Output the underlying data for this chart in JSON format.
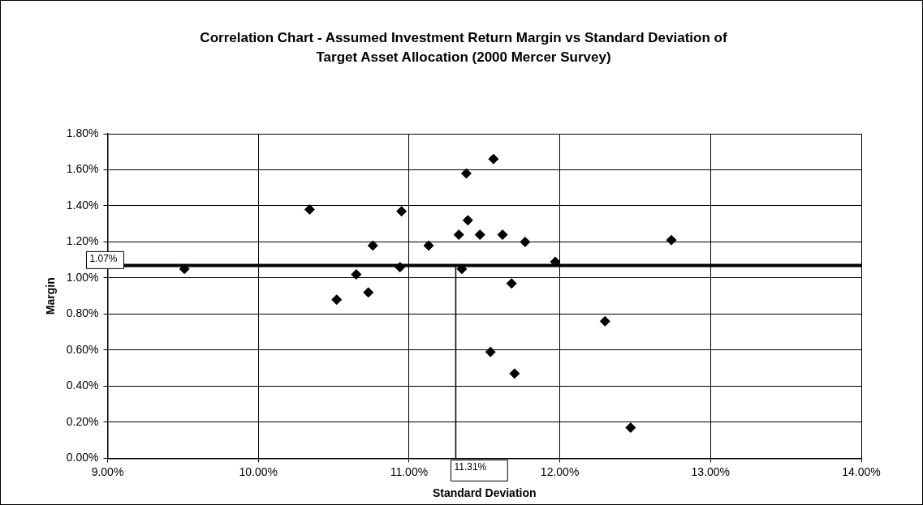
{
  "chart_data": {
    "type": "scatter",
    "title": "Correlation Chart - Assumed Investment Return Margin vs Standard Deviation of Target Asset Allocation (2000 Mercer Survey)",
    "xlabel": "Standard Deviation",
    "ylabel": "Margin",
    "x": [
      9.51,
      10.34,
      10.52,
      10.65,
      10.73,
      10.76,
      10.94,
      10.95,
      11.13,
      11.33,
      11.35,
      11.39,
      11.38,
      11.47,
      11.56,
      11.62,
      11.54,
      11.68,
      11.7,
      11.77,
      11.97,
      12.3,
      12.47,
      12.74
    ],
    "series": [
      {
        "color": "#000000",
        "values": [
          1.05,
          1.38,
          0.88,
          1.02,
          0.92,
          1.18,
          1.06,
          1.37,
          1.18,
          1.24,
          1.05,
          1.32,
          1.58,
          1.24,
          1.66,
          1.24,
          0.59,
          0.97,
          0.47,
          1.2,
          1.09,
          0.76,
          0.17,
          1.21
        ]
      }
    ],
    "xlim": [
      9,
      14
    ],
    "ylim": [
      0,
      1.8
    ],
    "xticks": [
      {
        "value": 9,
        "label": "9.00%"
      },
      {
        "value": 10,
        "label": "10.00%"
      },
      {
        "value": 11,
        "label": "11.00%"
      },
      {
        "value": 12,
        "label": "12.00%"
      },
      {
        "value": 13,
        "label": "13.00%"
      },
      {
        "value": 14,
        "label": "14.00%"
      }
    ],
    "yticks": [
      {
        "value": 0,
        "label": "0.00%"
      },
      {
        "value": 0.2,
        "label": "0.20%"
      },
      {
        "value": 0.4,
        "label": "0.40%"
      },
      {
        "value": 0.6,
        "label": "0.60%"
      },
      {
        "value": 0.8,
        "label": "0.80%"
      },
      {
        "value": 1.0,
        "label": "1.00%"
      },
      {
        "value": 1.2,
        "label": "1.20%"
      },
      {
        "value": 1.4,
        "label": "1.40%"
      },
      {
        "value": 1.6,
        "label": "1.60%"
      },
      {
        "value": 1.8,
        "label": "1.80%"
      }
    ],
    "ref_lines": [
      {
        "axis": "y",
        "value": 1.07,
        "label": "1.07%",
        "color": "#000000"
      },
      {
        "axis": "x",
        "value": 11.31,
        "label": "11.31%",
        "color": "#000000"
      }
    ],
    "grid": true,
    "legend": false,
    "marker": "diamond"
  }
}
